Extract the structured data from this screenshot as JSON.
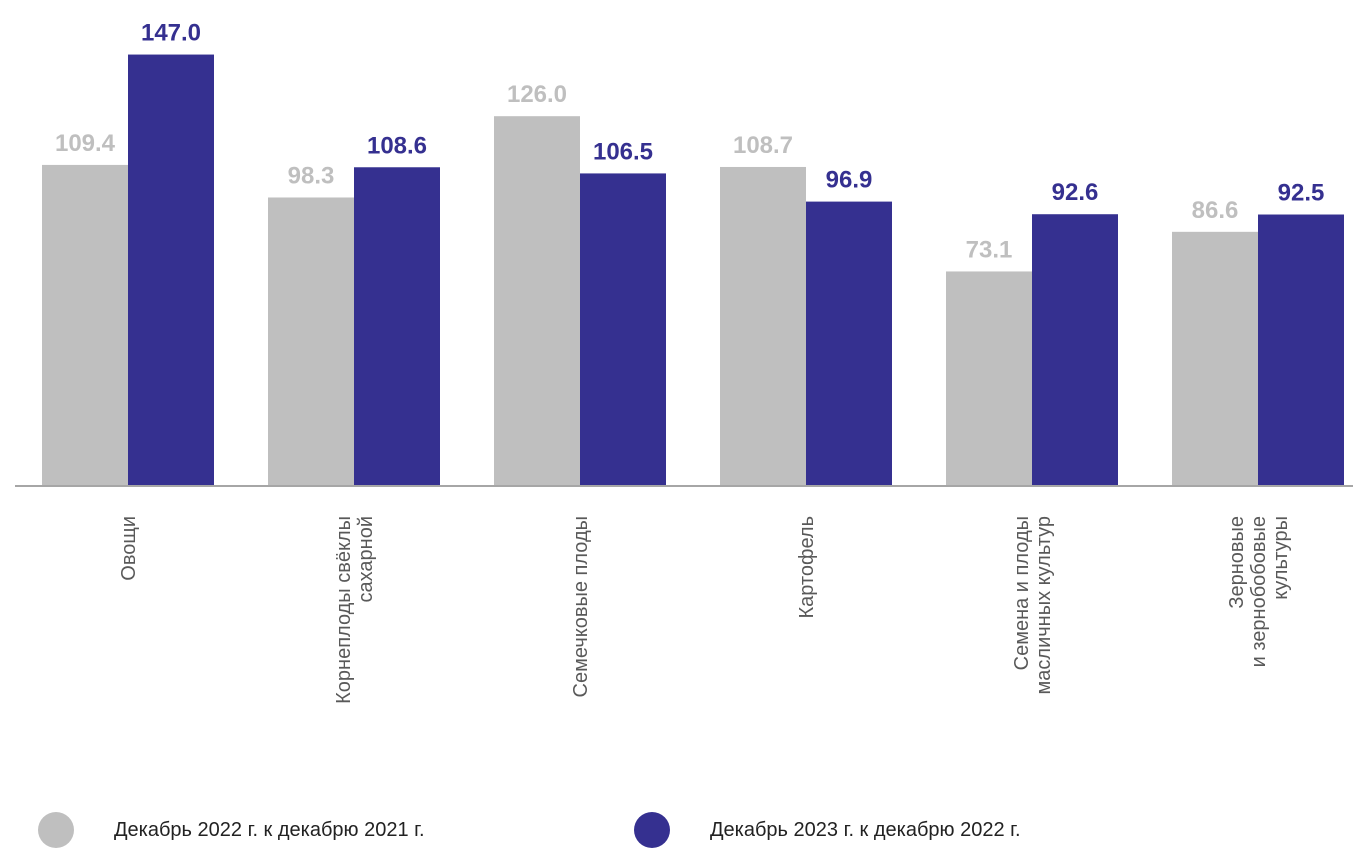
{
  "chart_data": {
    "type": "bar",
    "categories": [
      [
        "Овощи"
      ],
      [
        "Корнеплоды свёклы",
        "сахарной"
      ],
      [
        "Семечковые плоды"
      ],
      [
        "Картофель"
      ],
      [
        "Семена и плоды",
        "масличных культур"
      ],
      [
        "Зерновые",
        "и зернобобовые",
        "культуры"
      ]
    ],
    "series": [
      {
        "name": "Декабрь 2022 г. к декабрю 2021 г.",
        "color": "#bfbfbf",
        "values": [
          109.4,
          98.3,
          126.0,
          108.7,
          73.1,
          86.6
        ]
      },
      {
        "name": "Декабрь 2023 г. к декабрю 2022 г.",
        "color": "#353090",
        "values": [
          147.0,
          108.6,
          106.5,
          96.9,
          92.6,
          92.5
        ]
      }
    ],
    "ylim": [
      0,
      150
    ],
    "legend": "bottom",
    "grid": false,
    "xlabel": "",
    "ylabel": ""
  },
  "colors": {
    "axis": "#a6a6a6",
    "category_text": "#595959"
  }
}
